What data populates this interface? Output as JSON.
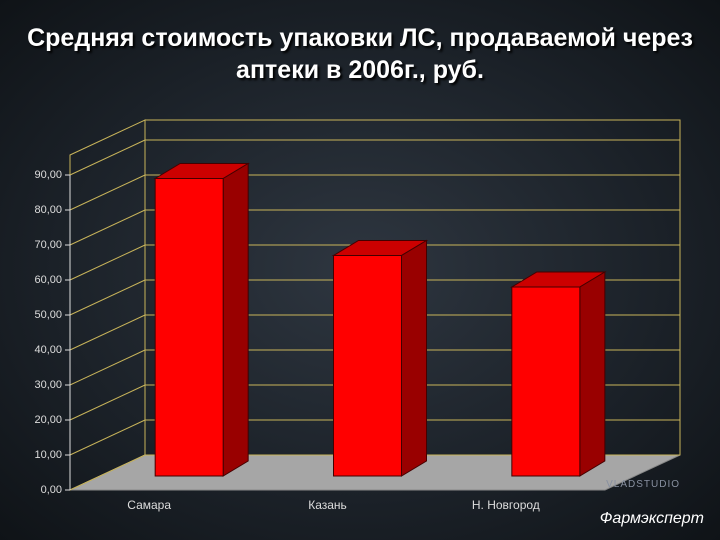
{
  "chart_data": {
    "type": "bar3d",
    "title": "Средняя стоимость упаковки ЛС, продаваемой через аптеки в 2006г., руб.",
    "categories": [
      "Самара",
      "Казань",
      "Н. Новгород"
    ],
    "values": [
      85,
      63,
      54
    ],
    "color": "#ff0000",
    "ylim": [
      0,
      90
    ],
    "yticks": [
      {
        "value": 0,
        "label": "0,00"
      },
      {
        "value": 10,
        "label": "10,00"
      },
      {
        "value": 20,
        "label": "20,00"
      },
      {
        "value": 30,
        "label": "30,00"
      },
      {
        "value": 40,
        "label": "40,00"
      },
      {
        "value": 50,
        "label": "50,00"
      },
      {
        "value": 60,
        "label": "60,00"
      },
      {
        "value": 70,
        "label": "70,00"
      },
      {
        "value": 80,
        "label": "80,00"
      },
      {
        "value": 90,
        "label": "90,00"
      }
    ],
    "grid": true
  },
  "footer": {
    "source": "Фармэксперт",
    "watermark": "VLADSTUDIO"
  }
}
